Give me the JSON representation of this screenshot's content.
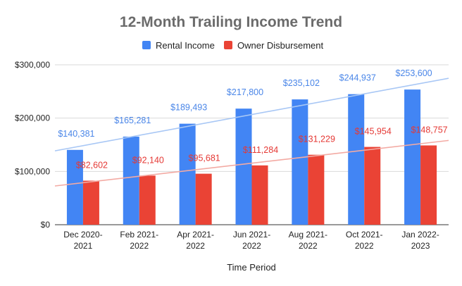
{
  "chart_data": {
    "type": "bar",
    "title": "12-Month Trailing Income Trend",
    "xlabel": "Time Period",
    "ylabel": "",
    "ylim": [
      0,
      300000
    ],
    "yticks": [
      0,
      100000,
      200000,
      300000
    ],
    "ytick_labels": [
      "$0",
      "$100,000",
      "$200,000",
      "$300,000"
    ],
    "grid": true,
    "legend_position": "top",
    "categories": [
      [
        "Dec 2020-",
        "2021"
      ],
      [
        "Feb 2021-",
        "2022"
      ],
      [
        "Apr 2021-",
        "2022"
      ],
      [
        "Jun 2021-",
        "2022"
      ],
      [
        "Aug 2021-",
        "2022"
      ],
      [
        "Oct 2021-",
        "2022"
      ],
      [
        "Jan 2022-",
        "2023"
      ]
    ],
    "series": [
      {
        "name": "Rental Income",
        "color": "#4285f4",
        "label_color": "#4a86e8",
        "trendline_color": "#a8c7f5",
        "values": [
          140381,
          165281,
          189493,
          217800,
          235102,
          244937,
          253600
        ],
        "labels": [
          "$140,381",
          "$165,281",
          "$189,493",
          "$217,800",
          "$235,102",
          "$244,937",
          "$253,600"
        ]
      },
      {
        "name": "Owner Disbursement",
        "color": "#ea4335",
        "label_color": "#e53935",
        "trendline_color": "#f3aaa3",
        "values": [
          82602,
          92140,
          95681,
          111284,
          131229,
          145954,
          148757
        ],
        "labels": [
          "$82,602",
          "$92,140",
          "$95,681",
          "$111,284",
          "$131,229",
          "$145,954",
          "$148,757"
        ]
      }
    ],
    "trendlines": true
  }
}
